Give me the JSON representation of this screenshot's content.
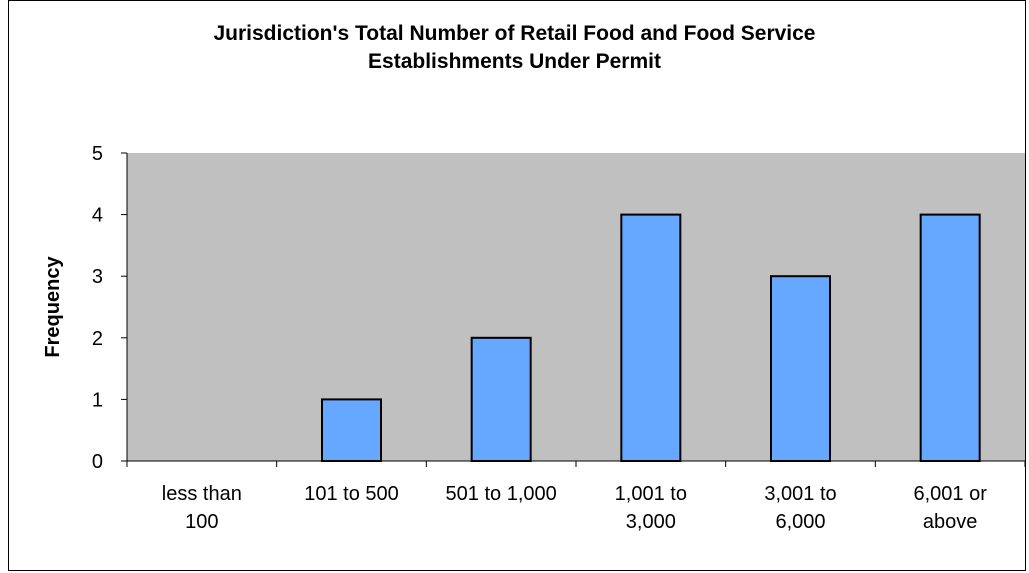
{
  "chart_data": {
    "type": "bar",
    "title": "Jurisdiction's Total Number of Retail Food and Food Service\nEstablishments Under Permit",
    "xlabel": "",
    "ylabel": "Frequency",
    "categories": [
      [
        "less than",
        "100"
      ],
      [
        "101 to 500"
      ],
      [
        "501 to 1,000"
      ],
      [
        "1,001 to",
        "3,000"
      ],
      [
        "3,001 to",
        "6,000"
      ],
      [
        "6,001 or",
        "above"
      ]
    ],
    "values": [
      0,
      1,
      2,
      4,
      3,
      4
    ],
    "ylim": [
      0,
      5
    ],
    "yticks": [
      0,
      1,
      2,
      3,
      4,
      5
    ],
    "grid": false,
    "legend": "none",
    "colors": {
      "bar_fill": "#66A8FF",
      "bar_stroke": "#000000",
      "plot_background": "#C0C0C0"
    }
  }
}
